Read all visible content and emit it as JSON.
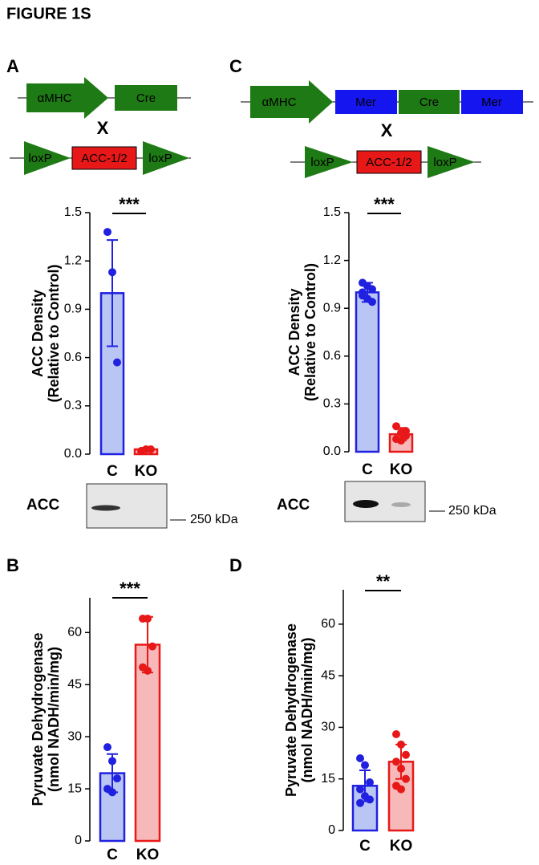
{
  "figure_title": "FIGURE 1S",
  "diagrams": [
    {
      "label": "A",
      "promoter": "αMHC",
      "parts": [
        "Cre"
      ],
      "cross": "X",
      "flank": [
        "loxP",
        "loxP"
      ],
      "gene": "ACC-1/2"
    },
    {
      "label": "C",
      "promoter": "αMHC",
      "parts": [
        "Mer",
        "Cre",
        "Mer"
      ],
      "cross": "X",
      "flank": [
        "loxP",
        "loxP"
      ],
      "gene": "ACC-1/2"
    }
  ],
  "blots": [
    {
      "label": "ACC",
      "marker": "250 kDa"
    },
    {
      "label": "ACC",
      "marker": "250 kDa"
    }
  ],
  "chart_data": [
    {
      "type": "bar",
      "ylabel": [
        "ACC Density",
        "(Relative to Control)"
      ],
      "categories": [
        "C",
        "KO"
      ],
      "colors": [
        "#2020e0",
        "#e81818"
      ],
      "fills": [
        "#b9c6f4",
        "#f6b8b8"
      ],
      "values": [
        1.0,
        0.03
      ],
      "errors": [
        0.33,
        0.01
      ],
      "points": [
        [
          1.38,
          1.13,
          0.57
        ],
        [
          0.02,
          0.03,
          0.03
        ]
      ],
      "ylim": [
        0,
        1.5
      ],
      "yticks": [
        {
          "value": 0,
          "label": "0.0"
        },
        0.3,
        0.6,
        0.9,
        1.2,
        1.5
      ],
      "annotation": "***"
    },
    {
      "type": "bar",
      "ylabel": [
        "ACC Density",
        "(Relative to Control)"
      ],
      "categories": [
        "C",
        "KO"
      ],
      "colors": [
        "#2020e0",
        "#e81818"
      ],
      "fills": [
        "#b9c6f4",
        "#f6b8b8"
      ],
      "values": [
        1.0,
        0.11
      ],
      "errors": [
        0.06,
        0.04
      ],
      "points": [
        [
          1.06,
          1.04,
          1.02,
          0.98,
          0.96,
          0.94,
          1.0
        ],
        [
          0.16,
          0.12,
          0.1,
          0.08,
          0.07,
          0.13
        ]
      ],
      "ylim": [
        0,
        1.5
      ],
      "yticks": [
        {
          "value": 0,
          "label": "0.0"
        },
        0.3,
        0.6,
        0.9,
        1.2,
        1.5
      ],
      "annotation": "***"
    },
    {
      "type": "bar",
      "panel": "B",
      "ylabel": [
        "Pyruvate Dehydrogenase",
        "(nmol NADH/min/mg)"
      ],
      "categories": [
        "C",
        "KO"
      ],
      "colors": [
        "#2020e0",
        "#e81818"
      ],
      "fills": [
        "#b9c6f4",
        "#f6b8b8"
      ],
      "values": [
        19.5,
        56.5
      ],
      "errors": [
        5.5,
        8
      ],
      "points": [
        [
          27,
          23,
          18,
          15,
          14
        ],
        [
          64,
          64,
          56,
          50,
          49
        ]
      ],
      "ylim": [
        0,
        70
      ],
      "yticks": [
        0,
        15,
        30,
        45,
        60
      ],
      "annotation": "***"
    },
    {
      "type": "bar",
      "panel": "D",
      "ylabel": [
        "Pyruvate Dehydrogenase",
        "(nmol NADH/min/mg)"
      ],
      "categories": [
        "C",
        "KO"
      ],
      "colors": [
        "#2020e0",
        "#e81818"
      ],
      "fills": [
        "#b9c6f4",
        "#f6b8b8"
      ],
      "values": [
        13,
        20
      ],
      "errors": [
        4.5,
        5
      ],
      "points": [
        [
          21,
          19,
          14,
          12,
          10,
          9,
          8
        ],
        [
          28,
          25,
          22,
          20,
          18,
          15,
          13,
          12
        ]
      ],
      "ylim": [
        0,
        70
      ],
      "yticks": [
        0,
        15,
        30,
        45,
        60
      ],
      "annotation": "**"
    }
  ]
}
